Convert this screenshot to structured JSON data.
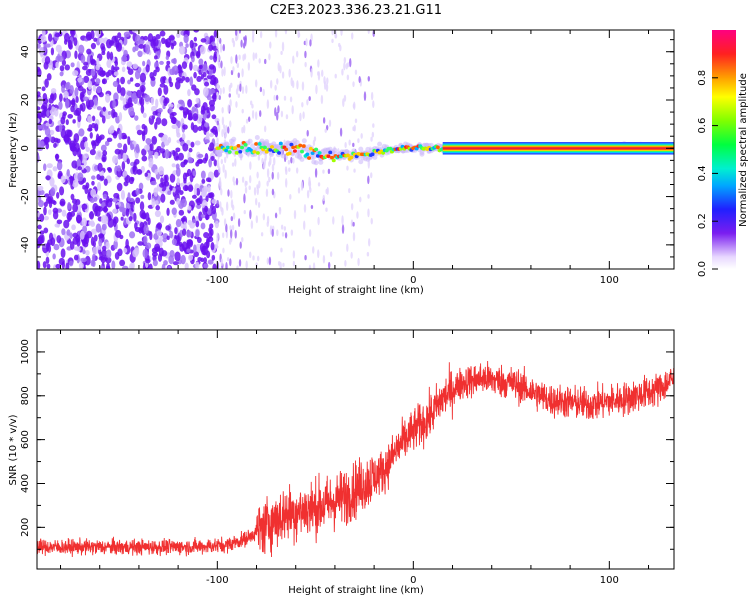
{
  "title": "C2E3.2023.336.23.21.G11",
  "colors": {
    "snr_line": "#f03030",
    "axis": "#000000",
    "scatter_noise": "#7a1ef0",
    "track_center": "#e8203a"
  },
  "chart_data": [
    {
      "type": "heatmap",
      "xlabel": "Height of straight line (km)",
      "ylabel": "Frequency (Hz)",
      "xlim": [
        -192,
        133
      ],
      "ylim": [
        -50,
        49
      ],
      "x_ticks": [
        "-100",
        "0",
        "100"
      ],
      "y_ticks": [
        "-40",
        "-20",
        "0",
        "20",
        "40"
      ],
      "grid": false,
      "description_values": {
        "noise_region_x": [
          -192,
          -100
        ],
        "track": [
          {
            "x": -100,
            "freq": 0
          },
          {
            "x": -80,
            "freq": 0
          },
          {
            "x": -60,
            "freq": 0
          },
          {
            "x": -50,
            "freq": -2
          },
          {
            "x": -40,
            "freq": -3
          },
          {
            "x": -30,
            "freq": -3
          },
          {
            "x": -20,
            "freq": -2
          },
          {
            "x": -10,
            "freq": 0
          },
          {
            "x": 0,
            "freq": 0
          },
          {
            "x": 20,
            "freq": 0
          },
          {
            "x": 133,
            "freq": 0
          }
        ]
      },
      "colorbar": {
        "label": "Normalized spectral amplitude",
        "ticks": [
          "0.0",
          "0.2",
          "0.4",
          "0.6",
          "0.8"
        ],
        "range": [
          0,
          1
        ]
      }
    },
    {
      "type": "line",
      "xlabel": "Height of straight line (km)",
      "ylabel": "SNR (10 * v/v)",
      "xlim": [
        -192,
        133
      ],
      "ylim": [
        10,
        1100
      ],
      "x_ticks": [
        "-100",
        "0",
        "100"
      ],
      "y_ticks": [
        "200",
        "400",
        "600",
        "800",
        "1000"
      ],
      "grid": false,
      "series": [
        {
          "x": [
            -192,
            -160,
            -130,
            -110,
            -95,
            -85,
            -75,
            -65,
            -55,
            -45,
            -35,
            -25,
            -15,
            -8,
            0,
            8,
            15,
            25,
            35,
            50,
            70,
            90,
            110,
            125,
            133
          ],
          "values": [
            110,
            110,
            110,
            112,
            120,
            150,
            210,
            260,
            280,
            300,
            340,
            400,
            460,
            560,
            640,
            700,
            790,
            860,
            880,
            860,
            780,
            760,
            790,
            830,
            880
          ]
        }
      ]
    }
  ]
}
